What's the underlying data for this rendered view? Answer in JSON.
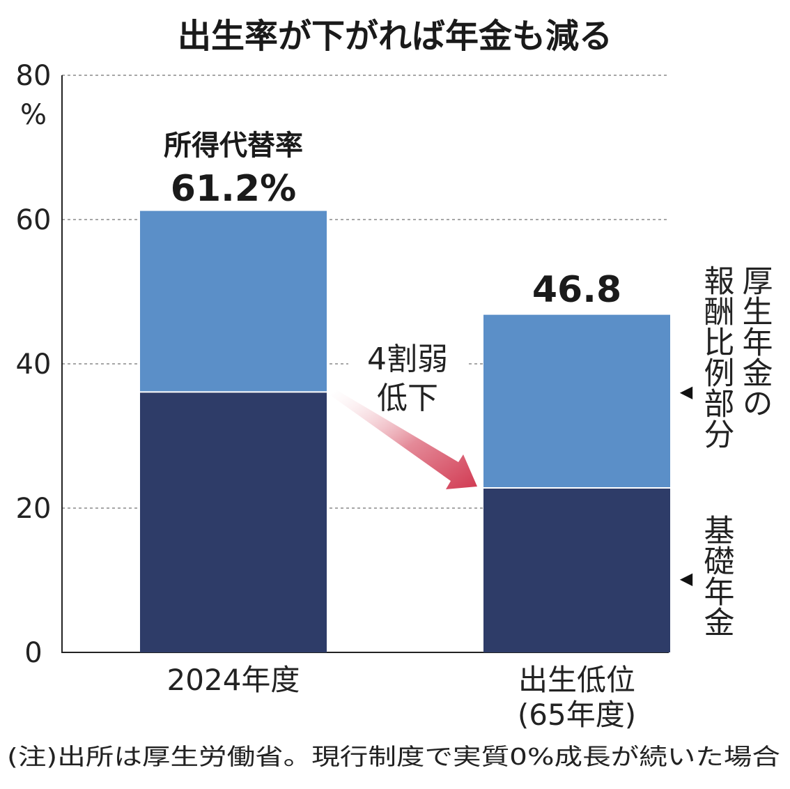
{
  "chart_data": {
    "type": "bar",
    "stacked": true,
    "title": "出生率が下がれば年金も減る",
    "y_unit": "%",
    "ylim": [
      0,
      80
    ],
    "y_ticks": [
      "0",
      "20",
      "40",
      "60",
      "80"
    ],
    "grid": true,
    "categories": [
      "2024年度",
      "出生低位"
    ],
    "category_sublabels": [
      "",
      "(65年度)"
    ],
    "series": [
      {
        "name": "基礎年金",
        "values": [
          36.1,
          22.8
        ],
        "color": "#2e3c68"
      },
      {
        "name": "厚生年金の報酬比例部分",
        "values": [
          25.1,
          24.0
        ],
        "color": "#5b8fc8"
      }
    ],
    "totals": [
      61.2,
      46.8
    ],
    "total_labels": [
      "61.2%",
      "46.8"
    ],
    "total_heading": "所得代替率",
    "annotation": {
      "line1": "4割弱",
      "line2": "低下",
      "arrow_color": "#d13a52"
    },
    "legend": {
      "upper_label": "厚生年金の報酬比例部分",
      "upper_col1": "報酬比例部分",
      "upper_col2": "厚生年金の",
      "lower_label": "基礎年金",
      "marker": "◀"
    },
    "note": "(注)出所は厚生労働省。現行制度で実質0%成長が続いた場合"
  }
}
